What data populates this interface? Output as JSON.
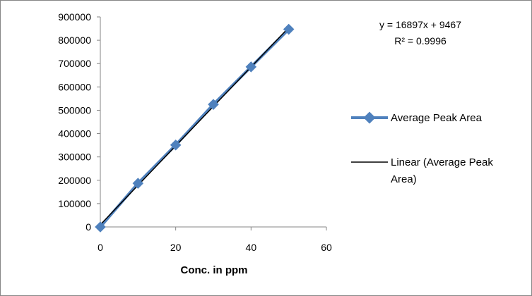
{
  "chart_data": {
    "type": "scatter",
    "title": "",
    "xlabel": "Conc. in ppm",
    "ylabel": "",
    "xlim": [
      0,
      60
    ],
    "ylim": [
      0,
      900000
    ],
    "xticks": [
      0,
      20,
      40,
      60
    ],
    "yticks": [
      0,
      100000,
      200000,
      300000,
      400000,
      500000,
      600000,
      700000,
      800000,
      900000
    ],
    "grid": false,
    "legend_position": "right",
    "series": [
      {
        "name": "Average Peak Area",
        "color": "#4F81BD",
        "marker": "diamond",
        "line": true,
        "x": [
          0,
          10,
          20,
          30,
          40,
          50
        ],
        "y": [
          0,
          187000,
          351000,
          525000,
          686000,
          847000
        ]
      }
    ],
    "trendline": {
      "name": "Linear (Average Peak Area)",
      "color": "#000000",
      "slope": 16897,
      "intercept": 9467,
      "equation": "y = 16897x + 9467",
      "r_squared": "R² = 0.9996"
    }
  }
}
